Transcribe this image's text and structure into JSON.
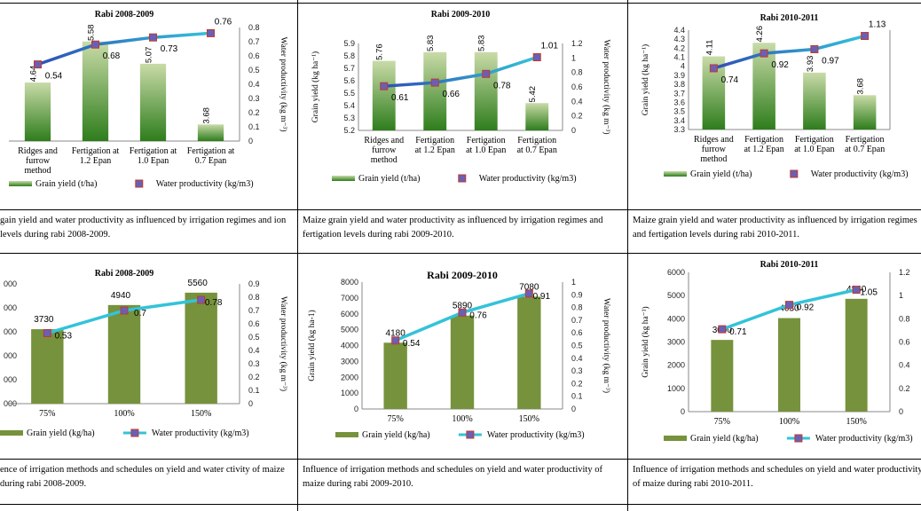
{
  "colors": {
    "bar_light": "#c9dba8",
    "bar_dark": "#2e7d1c",
    "bar_solid": "#76923c",
    "line_start": "#2f4fb5",
    "line_end": "#33c3d9",
    "marker": "#6b5fb5"
  },
  "charts": [
    {
      "title": "Rabi 2008-2009",
      "caption": "gain yield and water productivity as influenced by irrigation regimes and ion levels during rabi 2008-2009.",
      "chart_data": {
        "type": "bar",
        "title": "Rabi 2008-2009",
        "categories": [
          [
            "Ridges and",
            "furrow",
            "method"
          ],
          [
            "Fertigation at",
            "1.2 Epan"
          ],
          [
            "Fertigation at",
            "1.0 Epan"
          ],
          [
            "Fertigation at",
            "0.7 Epan"
          ]
        ],
        "series": [
          {
            "name": "Grain yield (t/ha)",
            "kind": "bar",
            "axis": "left",
            "values": [
              4.64,
              5.58,
              5.07,
              3.68
            ],
            "labels": [
              "4.64",
              "5.58",
              "5.07",
              "3.68"
            ]
          },
          {
            "name": "Water productivity (kg/m3)",
            "kind": "line",
            "axis": "right",
            "values": [
              0.54,
              0.68,
              0.73,
              0.76
            ],
            "labels": [
              "0.54",
              "0.68",
              "0.73",
              "0.76"
            ]
          }
        ],
        "ylim": [
          3.3,
          5.9
        ],
        "y_ticks": [],
        "y2lim": [
          0,
          0.8
        ],
        "y2_ticks": [
          "0",
          "0.1",
          "0.2",
          "0.3",
          "0.4",
          "0.5",
          "0.6",
          "0.7",
          "0.8"
        ],
        "ylabel": "",
        "y2label": "Water productivity (kg m⁻³)"
      }
    },
    {
      "title": "Rabi 2009-2010",
      "caption": "Maize grain yield and water productivity as influenced by irrigation regimes and fertigation levels during rabi 2009-2010.",
      "chart_data": {
        "type": "bar",
        "title": "Rabi 2009-2010",
        "categories": [
          [
            "Ridges and",
            "furrow",
            "method"
          ],
          [
            "Fertigation",
            "at 1.2 Epan"
          ],
          [
            "Fertigation",
            "at 1.0 Epan"
          ],
          [
            "Fertigation",
            "at 0.7 Epan"
          ]
        ],
        "series": [
          {
            "name": "Grain yield (t/ha)",
            "kind": "bar",
            "axis": "left",
            "values": [
              5.76,
              5.83,
              5.83,
              5.42
            ],
            "labels": [
              "5.76",
              "5.83",
              "5.83",
              "5.42"
            ]
          },
          {
            "name": "Water productivity (kg/m3)",
            "kind": "line",
            "axis": "right",
            "values": [
              0.61,
              0.66,
              0.78,
              1.01
            ],
            "labels": [
              "0.61",
              "0.66",
              "0.78",
              "1.01"
            ]
          }
        ],
        "ylim": [
          5.2,
          5.9
        ],
        "y_ticks": [
          "5.2",
          "5.3",
          "5.4",
          "5.5",
          "5.6",
          "5.7",
          "5.8",
          "5.9"
        ],
        "y2lim": [
          0,
          1.2
        ],
        "y2_ticks": [
          "0",
          "0.2",
          "0.4",
          "0.6",
          "0.8",
          "1",
          "1.2"
        ],
        "ylabel": "Grain yield (kg ha⁻¹)",
        "y2label": "Water productivity (kg m⁻³)"
      }
    },
    {
      "title": "Rabi 2010-2011",
      "caption": "Maize grain yield and water productivity as influenced by irrigation regimes and fertigation levels during rabi 2010-2011.",
      "chart_data": {
        "type": "bar",
        "title": "Rabi 2010-2011",
        "categories": [
          [
            "Ridges and",
            "furrow",
            "method"
          ],
          [
            "Fertigation",
            "at 1.2 Epan"
          ],
          [
            "Fertigation",
            "at 1.0 Epan"
          ],
          [
            "Fertigation",
            "at 0.7 Epan"
          ]
        ],
        "series": [
          {
            "name": "Grain yield (t/ha)",
            "kind": "bar",
            "axis": "left",
            "values": [
              4.11,
              4.26,
              3.93,
              3.68
            ],
            "labels": [
              "4.11",
              "4.26",
              "3.93",
              "3.68"
            ]
          },
          {
            "name": "Water productivity (kg/m3)",
            "kind": "line",
            "axis": "right",
            "values": [
              0.74,
              0.92,
              0.97,
              1.13
            ],
            "labels": [
              "0.74",
              "0.92",
              "0.97",
              "1.13"
            ]
          }
        ],
        "ylim": [
          3.3,
          4.4
        ],
        "y_ticks": [
          "3.3",
          "3.4",
          "3.5",
          "3.6",
          "3.7",
          "3.8",
          "3.9",
          "4",
          "4.1",
          "4.2",
          "4.3",
          "4.4"
        ],
        "y2lim": [
          0,
          1.2
        ],
        "y2_ticks": [],
        "ylabel": "Grain yield (kg ha⁻¹)",
        "y2label": ""
      }
    },
    {
      "title": "Rabi 2008-2009",
      "caption": "ence of irrigation methods and schedules on yield and water ctivity of maize during rabi 2008-2009.",
      "chart_data": {
        "type": "bar",
        "title": "Rabi 2008-2009",
        "categories": [
          [
            "75%"
          ],
          [
            "100%"
          ],
          [
            "150%"
          ]
        ],
        "series": [
          {
            "name": "Grain yield (kg/ha)",
            "kind": "bar",
            "axis": "left",
            "values": [
              3730,
              4940,
              5560
            ],
            "labels": [
              "3730",
              "4940",
              "5560"
            ]
          },
          {
            "name": "Water productivity (kg/m3)",
            "kind": "line",
            "axis": "right",
            "values": [
              0.53,
              0.7,
              0.78
            ],
            "labels": [
              "0.53",
              "0.7",
              "0.78"
            ]
          }
        ],
        "ylim": [
          0,
          6000
        ],
        "y_ticks": [
          "000",
          "000",
          "000",
          "000",
          "000",
          "000"
        ],
        "y2lim": [
          0,
          0.9
        ],
        "y2_ticks": [
          "0",
          "0.1",
          "0.2",
          "0.3",
          "0.4",
          "0.5",
          "0.6",
          "0.7",
          "0.8",
          "0.9"
        ],
        "ylabel": "",
        "y2label": "Water productivity (kg m⁻³)"
      }
    },
    {
      "title": "Rabi 2009-2010",
      "caption": "Influence of irrigation methods and schedules on yield and water productivity of maize during rabi 2009-2010.",
      "chart_data": {
        "type": "bar",
        "title": "Rabi 2009-2010",
        "categories": [
          [
            "75%"
          ],
          [
            "100%"
          ],
          [
            "150%"
          ]
        ],
        "series": [
          {
            "name": "Grain yield (kg/ha)",
            "kind": "bar",
            "axis": "left",
            "values": [
              4180,
              5890,
              7080
            ],
            "labels": [
              "4180",
              "5890",
              "7080"
            ]
          },
          {
            "name": "Water productivity (kg/m3)",
            "kind": "line",
            "axis": "right",
            "values": [
              0.54,
              0.76,
              0.91
            ],
            "labels": [
              "0.54",
              "0.76",
              "0.91"
            ]
          }
        ],
        "ylim": [
          0,
          8000
        ],
        "y_ticks": [
          "0",
          "1000",
          "2000",
          "3000",
          "4000",
          "5000",
          "6000",
          "7000",
          "8000"
        ],
        "y2lim": [
          0,
          1
        ],
        "y2_ticks": [
          "0",
          "0.1",
          "0.2",
          "0.3",
          "0.4",
          "0.5",
          "0.6",
          "0.7",
          "0.8",
          "0.9",
          "1"
        ],
        "ylabel": "Grain yield (kg ha-1)",
        "y2label": "Water productivity (kg m⁻³)"
      }
    },
    {
      "title": "Rabi 2010-2011",
      "caption": "Influence of irrigation methods and schedules on yield and water productivity of maize during rabi 2010-2011.",
      "chart_data": {
        "type": "bar",
        "title": "Rabi 2010-2011",
        "categories": [
          [
            "75%"
          ],
          [
            "100%"
          ],
          [
            "150%"
          ]
        ],
        "series": [
          {
            "name": "Grain yield (kg/ha)",
            "kind": "bar",
            "axis": "left",
            "values": [
              3090,
              4030,
              4860
            ],
            "labels": [
              "3090",
              "4030",
              "4860"
            ]
          },
          {
            "name": "Water productivity (kg/m3)",
            "kind": "line",
            "axis": "right",
            "values": [
              0.71,
              0.92,
              1.05
            ],
            "labels": [
              "0.71",
              "0.92",
              "1.05"
            ]
          }
        ],
        "ylim": [
          0,
          6000
        ],
        "y_ticks": [
          "0",
          "1000",
          "2000",
          "3000",
          "4000",
          "5000",
          "6000"
        ],
        "y2lim": [
          0,
          1.2
        ],
        "y2_ticks": [
          "0",
          "0.2",
          "0.4",
          "0.6",
          "0.8",
          "1",
          "1.2"
        ],
        "ylabel": "Grain yield (kg ha⁻¹)",
        "y2label": ""
      }
    }
  ]
}
